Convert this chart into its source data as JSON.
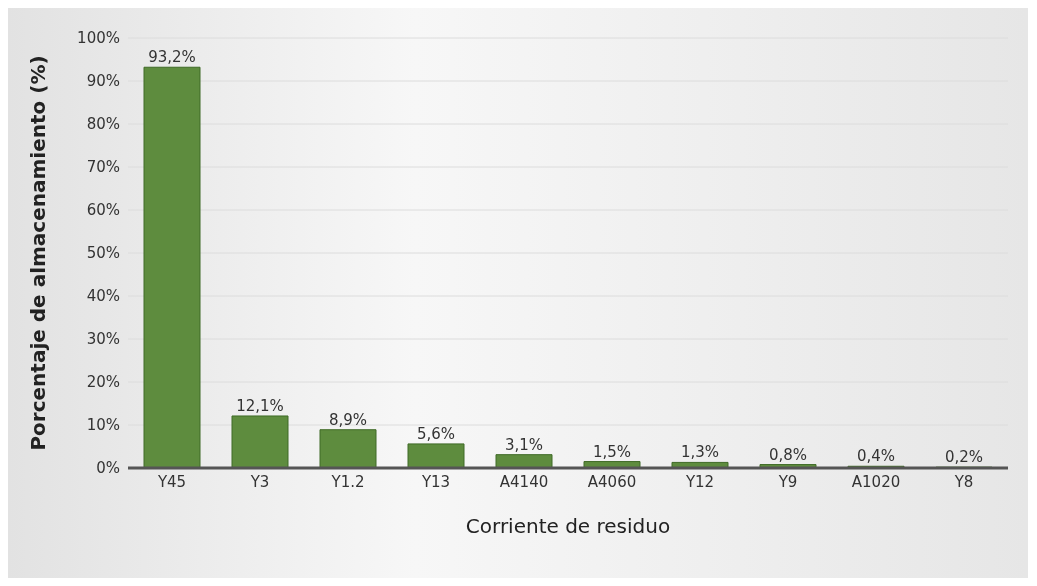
{
  "chart_data": {
    "type": "bar",
    "xlabel": "Corriente de residuo",
    "ylabel": "Porcentaje de almacenamiento (%)",
    "categories": [
      "Y45",
      "Y3",
      "Y1.2",
      "Y13",
      "A4140",
      "A4060",
      "Y12",
      "Y9",
      "A1020",
      "Y8"
    ],
    "values": [
      93.2,
      12.1,
      8.9,
      5.6,
      3.1,
      1.5,
      1.3,
      0.8,
      0.4,
      0.2
    ],
    "value_labels": [
      "93,2%",
      "12,1%",
      "8,9%",
      "5,6%",
      "3,1%",
      "1,5%",
      "1,3%",
      "0,8%",
      "0,4%",
      "0,2%"
    ],
    "color": "#5e8c3e",
    "ylim": [
      0,
      100
    ],
    "yticks": [
      {
        "value": 0,
        "label": "0%"
      },
      {
        "value": 10,
        "label": "10%"
      },
      {
        "value": 20,
        "label": "20%"
      },
      {
        "value": 30,
        "label": "30%"
      },
      {
        "value": 40,
        "label": "40%"
      },
      {
        "value": 50,
        "label": "50%"
      },
      {
        "value": 60,
        "label": "60%"
      },
      {
        "value": 70,
        "label": "70%"
      },
      {
        "value": 80,
        "label": "80%"
      },
      {
        "value": 90,
        "label": "90%"
      },
      {
        "value": 100,
        "label": "100%"
      }
    ],
    "grid": "y",
    "legend": false
  }
}
